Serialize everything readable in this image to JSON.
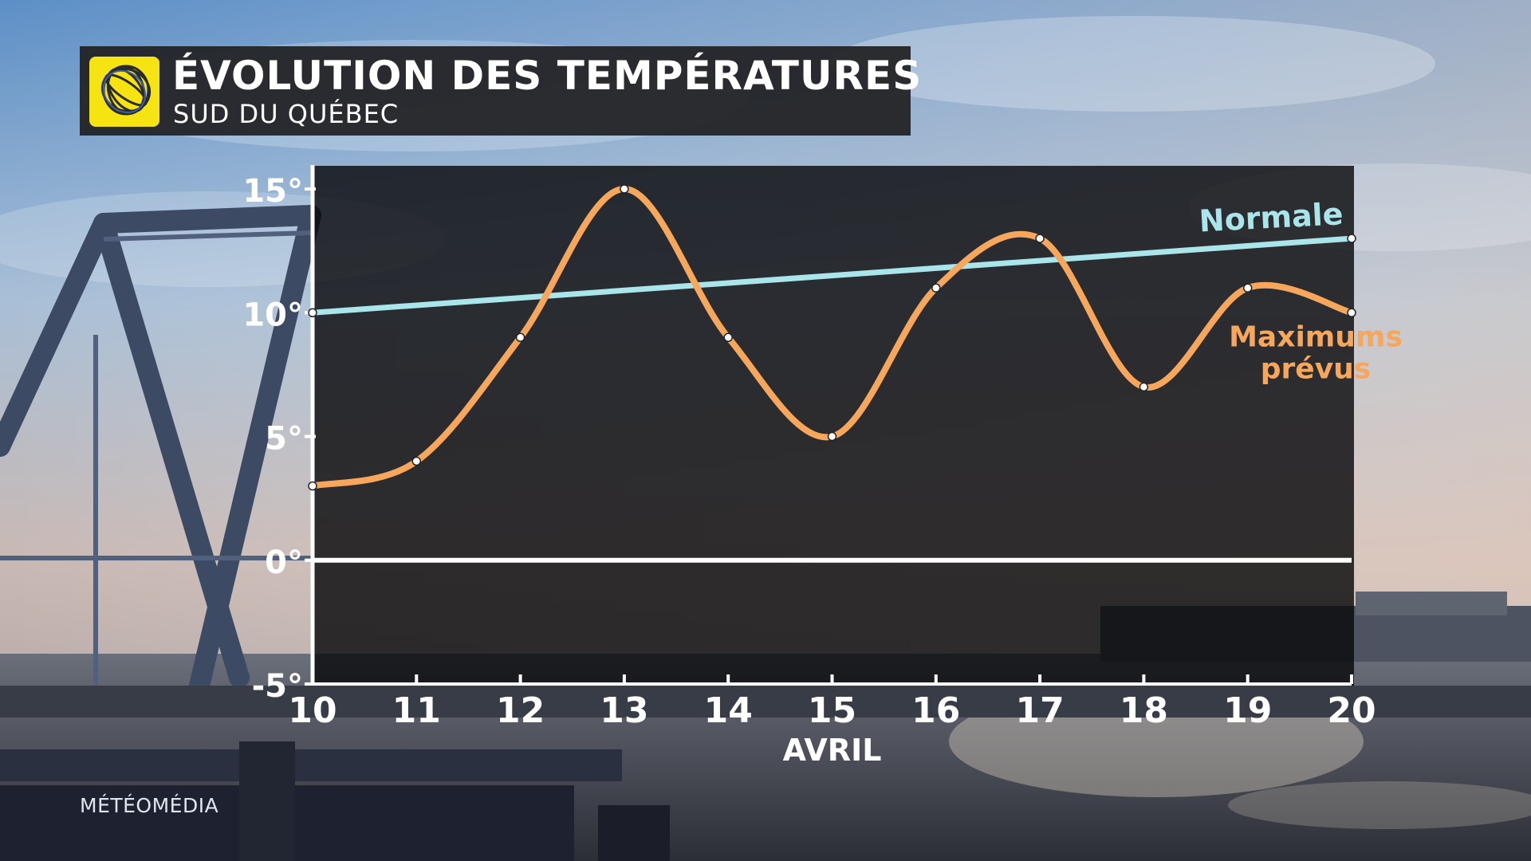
{
  "header": {
    "title": "ÉVOLUTION DES TEMPÉRATURES",
    "subtitle": "SUD DU QUÉBEC",
    "logo_icon": "meteomedia-globe-icon"
  },
  "brand": "MÉTÉOMÉDIA",
  "chart_data": {
    "type": "line",
    "title": "ÉVOLUTION DES TEMPÉRATURES",
    "subtitle": "SUD DU QUÉBEC",
    "xlabel": "AVRIL",
    "ylabel": "",
    "x": [
      10,
      11,
      12,
      13,
      14,
      15,
      16,
      17,
      18,
      19,
      20
    ],
    "x_tick_labels": [
      "10",
      "11",
      "12",
      "13",
      "14",
      "15",
      "16",
      "17",
      "18",
      "19",
      "20"
    ],
    "ylim": [
      -5,
      15
    ],
    "y_ticks": [
      15,
      10,
      5,
      0,
      -5
    ],
    "y_tick_labels": [
      "15°",
      "10°",
      "5°",
      "0°",
      "-5°"
    ],
    "grid": false,
    "zero_line": true,
    "series": [
      {
        "name": "Maximums prévus",
        "label_lines": [
          "Maximums",
          "prévus"
        ],
        "color": "#f7a75c",
        "smooth": true,
        "values": [
          3,
          4,
          9,
          15,
          9,
          5,
          11,
          13,
          7,
          11,
          10
        ]
      },
      {
        "name": "Normale",
        "label_lines": [
          "Normale"
        ],
        "color": "#a9e5ea",
        "smooth": false,
        "values": [
          10,
          10.3,
          10.6,
          10.9,
          11.2,
          11.5,
          11.8,
          12.1,
          12.4,
          12.7,
          13
        ]
      }
    ]
  }
}
